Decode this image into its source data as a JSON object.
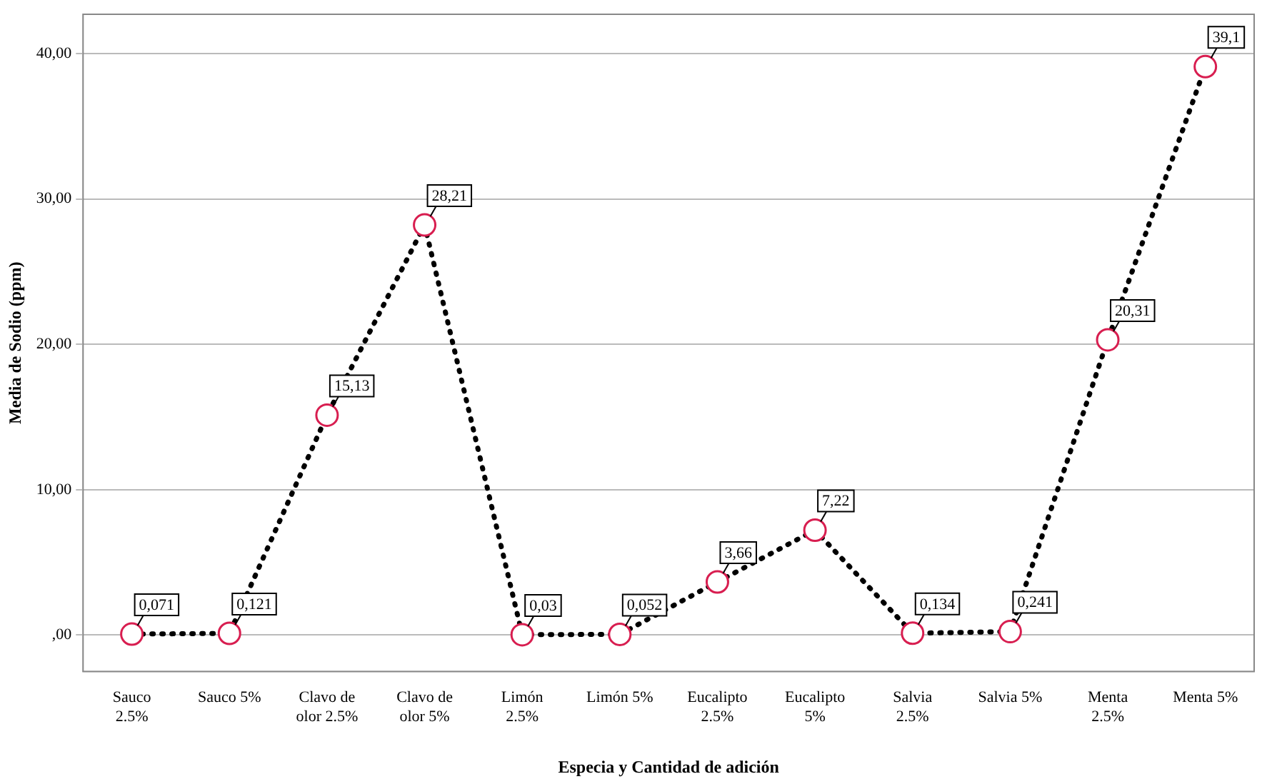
{
  "chart_data": {
    "type": "line",
    "xlabel": "Especia y Cantidad de adición",
    "ylabel": "Media de Sodio (ppm)",
    "categories": [
      "Sauco 2.5%",
      "Sauco 5%",
      "Clavo de olor 2.5%",
      "Clavo de olor 5%",
      "Limón 2.5%",
      "Limón 5%",
      "Eucalipto 2.5%",
      "Eucalipto 5%",
      "Salvia 2.5%",
      "Salvia 5%",
      "Menta 2.5%",
      "Menta 5%"
    ],
    "series": [
      {
        "color": "#000000",
        "colors": [
          "#d81e50",
          "#d81e50",
          "#d81e50",
          "#d81e50",
          "#d81e50",
          "#d81e50",
          "#d81e50",
          "#d81e50",
          "#d81e50",
          "#d81e50",
          "#d81e50",
          "#d81e50"
        ],
        "values": [
          0.071,
          0.121,
          15.13,
          28.21,
          0.03,
          0.052,
          3.66,
          7.22,
          0.134,
          0.241,
          20.31,
          39.1
        ],
        "value_labels": [
          "0,071",
          "0,121",
          "15,13",
          "28,21",
          "0,03",
          "0,052",
          "3,66",
          "7,22",
          "0,134",
          "0,241",
          "20,31",
          "39,1"
        ]
      }
    ],
    "ylim": [
      -2.5,
      42.7
    ],
    "yticks": [
      {
        "value": 0,
        "label": ",00"
      },
      {
        "value": 10,
        "label": "10,00"
      },
      {
        "value": 20,
        "label": "20,00"
      },
      {
        "value": 30,
        "label": "30,00"
      },
      {
        "value": 40,
        "label": "40,00"
      }
    ],
    "grid": "y",
    "marker": "circle",
    "line_style": "dotted",
    "legend": false
  }
}
